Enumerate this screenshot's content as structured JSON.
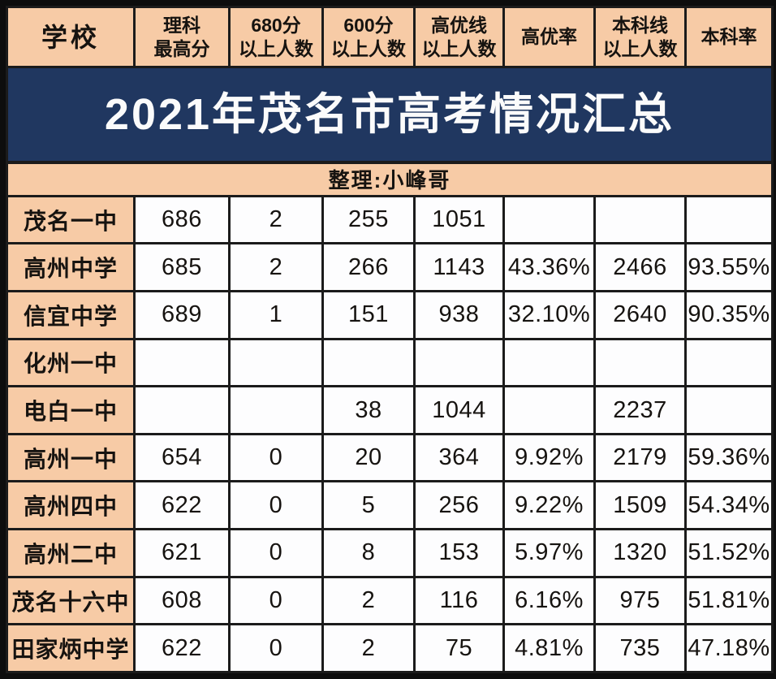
{
  "colors": {
    "title_bg": "#203760",
    "title_text": "#FBFBFB",
    "header_bg": "#F7CBA6",
    "cell_bg": "#FDFDFE",
    "grid_border": "#1B1B1B",
    "outer_border": "#0D0D0D",
    "text": "#161310"
  },
  "chart_data": {
    "type": "table",
    "title": "2021年茂名市高考情况汇总",
    "subtitle": "整理:小峰哥",
    "columns": [
      "学校",
      "理科最高分",
      "680分以上人数",
      "600分以上人数",
      "高优线以上人数",
      "高优率",
      "本科线以上人数",
      "本科率"
    ],
    "header_lines": [
      [
        "学校"
      ],
      [
        "理科",
        "最高分"
      ],
      [
        "680分",
        "以上人数"
      ],
      [
        "600分",
        "以上人数"
      ],
      [
        "高优线",
        "以上人数"
      ],
      [
        "高优率"
      ],
      [
        "本科线",
        "以上人数"
      ],
      [
        "本科率"
      ]
    ],
    "rows": [
      {
        "school": "茂名一中",
        "values": [
          "686",
          "2",
          "255",
          "1051",
          "",
          "",
          ""
        ]
      },
      {
        "school": "高州中学",
        "values": [
          "685",
          "2",
          "266",
          "1143",
          "43.36%",
          "2466",
          "93.55%"
        ]
      },
      {
        "school": "信宜中学",
        "values": [
          "689",
          "1",
          "151",
          "938",
          "32.10%",
          "2640",
          "90.35%"
        ]
      },
      {
        "school": "化州一中",
        "values": [
          "",
          "",
          "",
          "",
          "",
          "",
          ""
        ]
      },
      {
        "school": "电白一中",
        "values": [
          "",
          "",
          "38",
          "1044",
          "",
          "2237",
          ""
        ]
      },
      {
        "school": "高州一中",
        "values": [
          "654",
          "0",
          "20",
          "364",
          "9.92%",
          "2179",
          "59.36%"
        ]
      },
      {
        "school": "高州四中",
        "values": [
          "622",
          "0",
          "5",
          "256",
          "9.22%",
          "1509",
          "54.34%"
        ]
      },
      {
        "school": "高州二中",
        "values": [
          "621",
          "0",
          "8",
          "153",
          "5.97%",
          "1320",
          "51.52%"
        ]
      },
      {
        "school": "茂名十六中",
        "values": [
          "608",
          "0",
          "2",
          "116",
          "6.16%",
          "975",
          "51.81%"
        ]
      },
      {
        "school": "田家炳中学",
        "values": [
          "622",
          "0",
          "2",
          "75",
          "4.81%",
          "735",
          "47.18%"
        ]
      }
    ]
  }
}
